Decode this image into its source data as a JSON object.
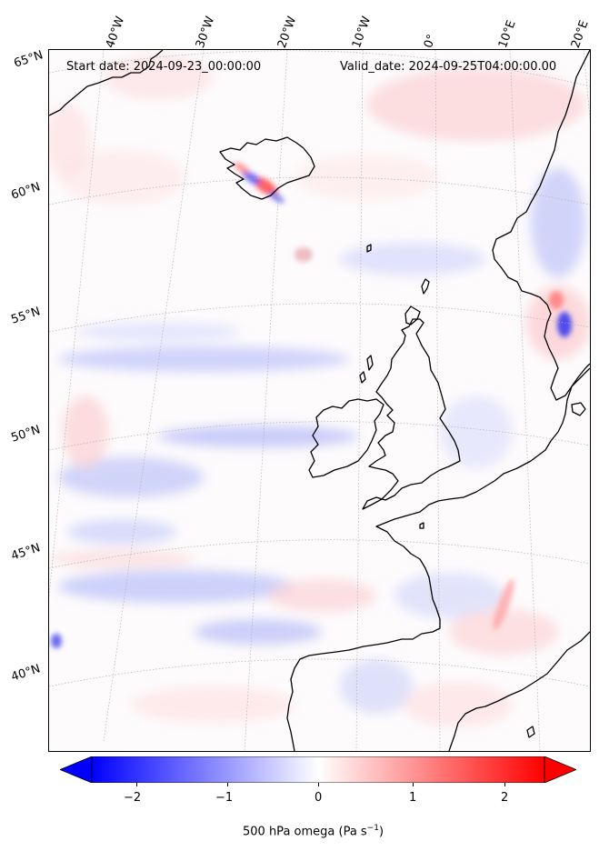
{
  "header": {
    "start_date": "Start date: 2024-09-23_00:00:00",
    "valid_date": "Valid_date: 2024-09-25T04:00:00.00"
  },
  "lon_labels": [
    "40°W",
    "30°W",
    "20°W",
    "10°W",
    "0°",
    "10°E",
    "20°E"
  ],
  "lat_labels": [
    "65°N",
    "60°N",
    "55°N",
    "50°N",
    "45°N",
    "40°N"
  ],
  "colorbar": {
    "ticks": [
      "−2",
      "−1",
      "0",
      "1",
      "2"
    ],
    "label": "500 hPa omega (Pa s",
    "label_exp": "−1",
    "label_close": ")",
    "colors": {
      "min": "#0000ff",
      "mid": "#ffffff",
      "max": "#ff0000"
    }
  },
  "map": {
    "coastline_color": "#000000",
    "gridline_color": "#b0b0b0",
    "field": "500 hPa omega"
  }
}
